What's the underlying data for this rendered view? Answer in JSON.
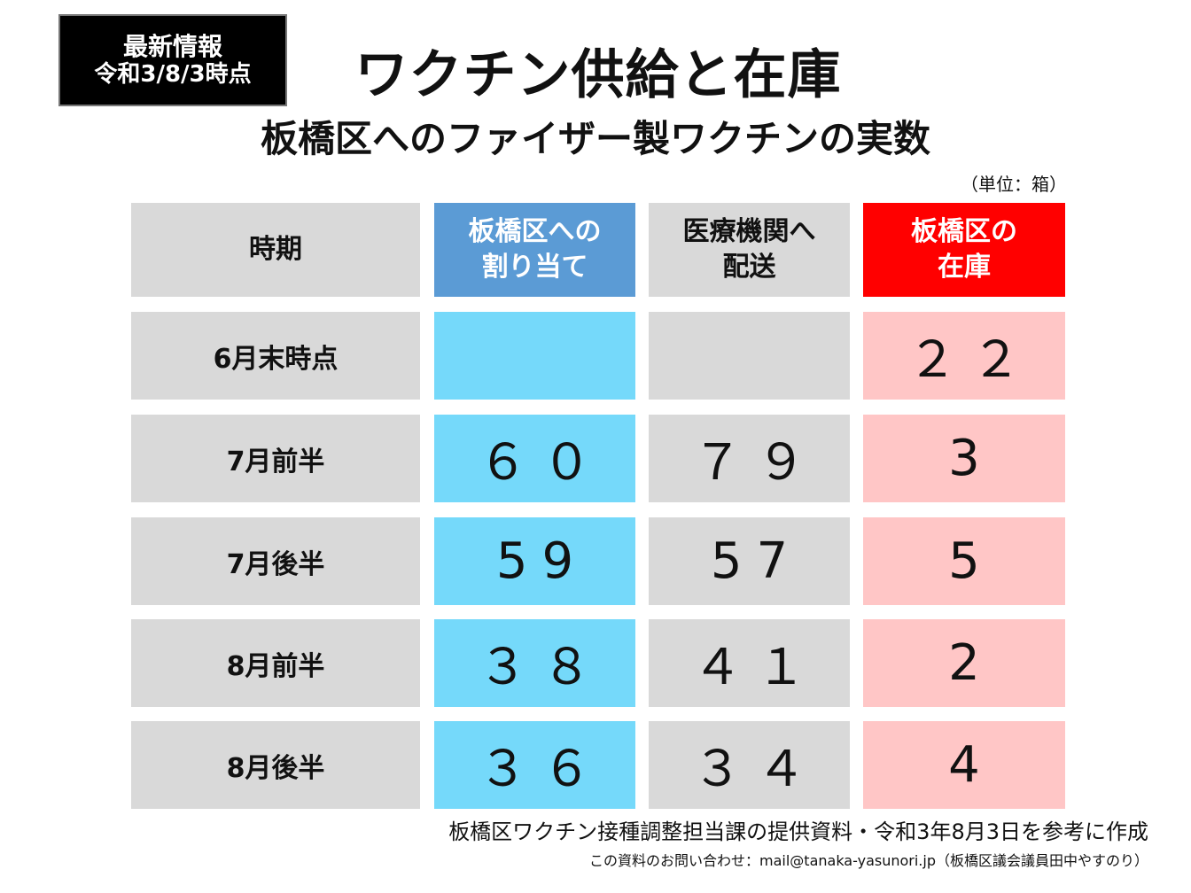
{
  "badge": {
    "line1": "最新情報",
    "line2": "令和3/8/3時点"
  },
  "title": "ワクチン供給と在庫",
  "subtitle": "板橋区へのファイザー製ワクチンの実数",
  "unit": "（単位：箱）",
  "table": {
    "headers": [
      "時期",
      "板橋区への\n割り当て",
      "医療機関へ\n配送",
      "板橋区の\n在庫"
    ],
    "rows": [
      {
        "period": "6月末時点",
        "allocation": "",
        "delivery": "",
        "stock": "２２"
      },
      {
        "period": "7月前半",
        "allocation": "６０",
        "delivery": "７９",
        "stock": "3"
      },
      {
        "period": "7月後半",
        "allocation": "59",
        "delivery": "57",
        "stock": "5"
      },
      {
        "period": "8月前半",
        "allocation": "３８",
        "delivery": "４１",
        "stock": "2"
      },
      {
        "period": "8月後半",
        "allocation": "３６",
        "delivery": "３４",
        "stock": "4"
      }
    ]
  },
  "colors": {
    "header_gray": "#d9d9d9",
    "header_blue": "#5b9bd5",
    "header_red": "#ff0000",
    "allocation_cell": "#75d9fa",
    "stock_cell": "#ffc6c6"
  },
  "footer": {
    "source": "板橋区ワクチン接種調整担当課の提供資料・令和3年8月3日を参考に作成",
    "contact": "この資料のお問い合わせ：mail@tanaka-yasunori.jp（板橋区議会議員田中やすのり）"
  }
}
